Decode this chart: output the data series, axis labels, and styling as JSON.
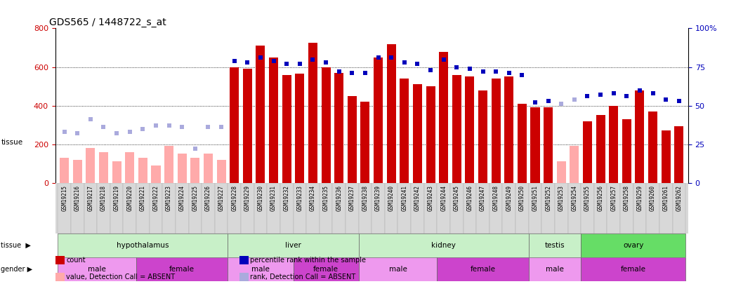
{
  "title": "GDS565 / 1448722_s_at",
  "samples": [
    "GSM19215",
    "GSM19216",
    "GSM19217",
    "GSM19218",
    "GSM19219",
    "GSM19220",
    "GSM19221",
    "GSM19222",
    "GSM19223",
    "GSM19224",
    "GSM19225",
    "GSM19226",
    "GSM19227",
    "GSM19228",
    "GSM19229",
    "GSM19230",
    "GSM19231",
    "GSM19232",
    "GSM19233",
    "GSM19234",
    "GSM19235",
    "GSM19236",
    "GSM19237",
    "GSM19238",
    "GSM19239",
    "GSM19240",
    "GSM19241",
    "GSM19242",
    "GSM19243",
    "GSM19244",
    "GSM19245",
    "GSM19246",
    "GSM19247",
    "GSM19248",
    "GSM19249",
    "GSM19250",
    "GSM19251",
    "GSM19252",
    "GSM19253",
    "GSM19254",
    "GSM19255",
    "GSM19256",
    "GSM19257",
    "GSM19258",
    "GSM19259",
    "GSM19260",
    "GSM19261",
    "GSM19262"
  ],
  "count": [
    130,
    120,
    180,
    160,
    110,
    160,
    130,
    90,
    190,
    150,
    130,
    150,
    120,
    600,
    590,
    710,
    650,
    560,
    565,
    725,
    600,
    570,
    450,
    420,
    650,
    720,
    540,
    510,
    500,
    680,
    560,
    550,
    480,
    540,
    550,
    410,
    390,
    390,
    110,
    190,
    320,
    350,
    400,
    330,
    480,
    370,
    270,
    295
  ],
  "percentile_pct": [
    33,
    32,
    41,
    36,
    32,
    33,
    35,
    37,
    37,
    36,
    22,
    36,
    36,
    79,
    78,
    81,
    79,
    77,
    77,
    80,
    78,
    72,
    71,
    71,
    81,
    81,
    78,
    77,
    73,
    80,
    75,
    74,
    72,
    72,
    71,
    70,
    52,
    53,
    51,
    54,
    56,
    57,
    58,
    56,
    60,
    58,
    54,
    53
  ],
  "absent_mask": [
    true,
    true,
    true,
    true,
    true,
    true,
    true,
    true,
    true,
    true,
    true,
    true,
    true,
    false,
    false,
    false,
    false,
    false,
    false,
    false,
    false,
    false,
    false,
    false,
    false,
    false,
    false,
    false,
    false,
    false,
    false,
    false,
    false,
    false,
    false,
    false,
    false,
    false,
    true,
    true,
    false,
    false,
    false,
    false,
    false,
    false,
    false,
    false
  ],
  "tissue_blocks": [
    {
      "name": "hypothalamus",
      "start": 0,
      "end": 12,
      "color": "#c8f0c8"
    },
    {
      "name": "liver",
      "start": 13,
      "end": 22,
      "color": "#c8f0c8"
    },
    {
      "name": "kidney",
      "start": 23,
      "end": 35,
      "color": "#c8f0c8"
    },
    {
      "name": "testis",
      "start": 36,
      "end": 39,
      "color": "#c8f0c8"
    },
    {
      "name": "ovary",
      "start": 40,
      "end": 47,
      "color": "#66dd66"
    }
  ],
  "gender_blocks": [
    {
      "name": "male",
      "start": 0,
      "end": 5,
      "color": "#ee99ee"
    },
    {
      "name": "female",
      "start": 6,
      "end": 12,
      "color": "#cc44cc"
    },
    {
      "name": "male",
      "start": 13,
      "end": 17,
      "color": "#ee99ee"
    },
    {
      "name": "female",
      "start": 18,
      "end": 22,
      "color": "#cc44cc"
    },
    {
      "name": "male",
      "start": 23,
      "end": 28,
      "color": "#ee99ee"
    },
    {
      "name": "female",
      "start": 29,
      "end": 35,
      "color": "#cc44cc"
    },
    {
      "name": "male",
      "start": 36,
      "end": 39,
      "color": "#ee99ee"
    },
    {
      "name": "female",
      "start": 40,
      "end": 47,
      "color": "#cc44cc"
    }
  ],
  "bar_color_present": "#cc0000",
  "bar_color_absent": "#ffaaaa",
  "dot_color_present": "#0000bb",
  "dot_color_absent": "#aaaadd",
  "ylim_left": [
    0,
    800
  ],
  "yticks_left": [
    0,
    200,
    400,
    600,
    800
  ],
  "yticks_right_vals": [
    0,
    200,
    400,
    600,
    800
  ],
  "yticks_right_labels": [
    "0",
    "25",
    "50",
    "75",
    "100%"
  ],
  "legend_items": [
    {
      "label": "count",
      "color": "#cc0000"
    },
    {
      "label": "percentile rank within the sample",
      "color": "#0000bb"
    },
    {
      "label": "value, Detection Call = ABSENT",
      "color": "#ffaaaa"
    },
    {
      "label": "rank, Detection Call = ABSENT",
      "color": "#aaaadd"
    }
  ],
  "bg_color": "white",
  "tick_label_bg": "#e0e0e0"
}
